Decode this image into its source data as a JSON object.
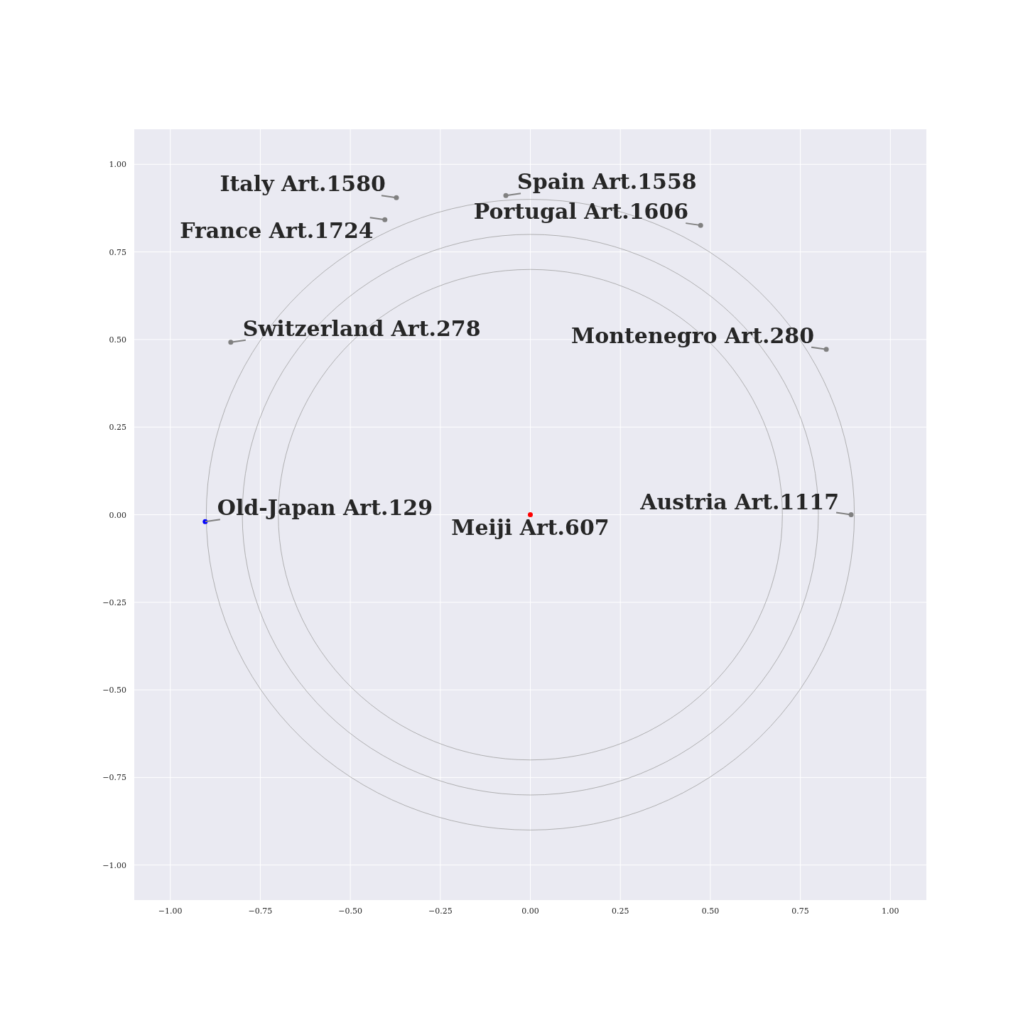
{
  "chart_data": {
    "type": "scatter",
    "xlim": [
      -1.1,
      1.1
    ],
    "ylim": [
      -1.1,
      1.1
    ],
    "xticks": [
      {
        "value": -1,
        "label": "−1.00"
      },
      {
        "value": -0.75,
        "label": "−0.75"
      },
      {
        "value": -0.5,
        "label": "−0.50"
      },
      {
        "value": -0.25,
        "label": "−0.25"
      },
      {
        "value": 0,
        "label": "0.00"
      },
      {
        "value": 0.25,
        "label": "0.25"
      },
      {
        "value": 0.5,
        "label": "0.50"
      },
      {
        "value": 0.75,
        "label": "0.75"
      },
      {
        "value": 1,
        "label": "1.00"
      }
    ],
    "yticks": [
      {
        "value": -1,
        "label": "−1.00"
      },
      {
        "value": -0.75,
        "label": "−0.75"
      },
      {
        "value": -0.5,
        "label": "−0.50"
      },
      {
        "value": -0.25,
        "label": "−0.25"
      },
      {
        "value": 0,
        "label": "0.00"
      },
      {
        "value": 0.25,
        "label": "0.25"
      },
      {
        "value": 0.5,
        "label": "0.50"
      },
      {
        "value": 0.75,
        "label": "0.75"
      },
      {
        "value": 1,
        "label": "1.00"
      }
    ],
    "grid": true,
    "series": [
      {
        "marker": "circle",
        "x": [
          -0.372,
          -0.068,
          -0.404,
          0.473,
          -0.832,
          0.822,
          0.891,
          -0.903,
          0
        ],
        "values": [
          0.905,
          0.911,
          0.842,
          0.826,
          0.492,
          0.472,
          0,
          -0.02,
          0
        ],
        "colors": [
          "#808080",
          "#808080",
          "#808080",
          "#808080",
          "#808080",
          "#808080",
          "#808080",
          "#0000ff",
          "#ff0000"
        ]
      }
    ],
    "annotations": [
      {
        "text": "Italy Art.1580",
        "x": -0.372,
        "y": 0.905
      },
      {
        "text": "Spain Art.1558",
        "x": -0.068,
        "y": 0.911
      },
      {
        "text": "France Art.1724",
        "x": -0.404,
        "y": 0.842
      },
      {
        "text": "Portugal Art.1606",
        "x": 0.473,
        "y": 0.826
      },
      {
        "text": "Switzerland Art.278",
        "x": -0.832,
        "y": 0.492
      },
      {
        "text": "Montenegro Art.280",
        "x": 0.822,
        "y": 0.472
      },
      {
        "text": "Austria Art.1117",
        "x": 0.891,
        "y": 0
      },
      {
        "text": "Old-Japan Art.129",
        "x": -0.903,
        "y": -0.02
      },
      {
        "text": "Meiji Art.607",
        "x": 0,
        "y": 0
      }
    ]
  }
}
